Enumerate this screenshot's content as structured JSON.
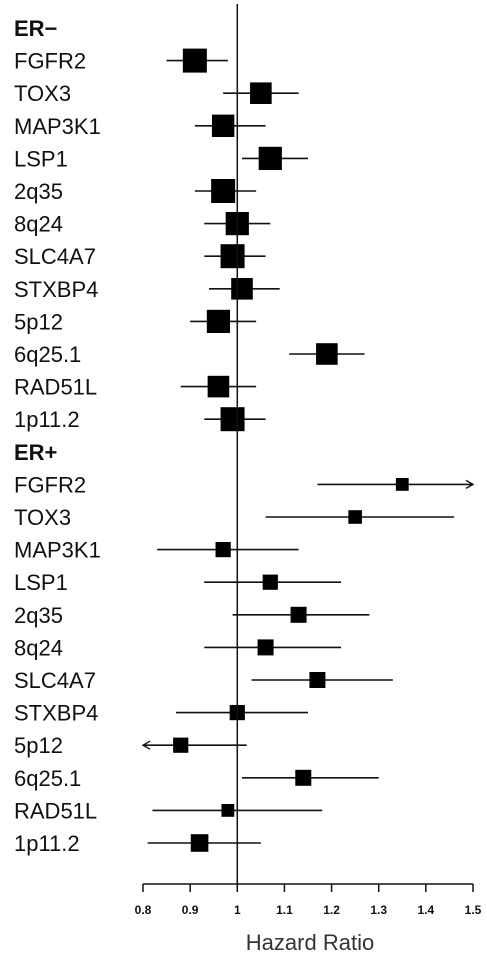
{
  "chart_data": {
    "type": "forest",
    "xlabel": "Hazard Ratio",
    "xlim": [
      0.8,
      1.5
    ],
    "xticks": [
      "0.8",
      "0.9",
      "1",
      "1.1",
      "1.2",
      "1.3",
      "1.4",
      "1.5"
    ],
    "reference_line": 1,
    "groups": [
      {
        "name": "ER−",
        "rows": [
          {
            "label": "FGFR2",
            "hr": 0.91,
            "lo": 0.85,
            "hi": 0.98,
            "weight": 1.0
          },
          {
            "label": "TOX3",
            "hr": 1.05,
            "lo": 0.97,
            "hi": 1.13,
            "weight": 0.85
          },
          {
            "label": "MAP3K1",
            "hr": 0.97,
            "lo": 0.91,
            "hi": 1.06,
            "weight": 0.9
          },
          {
            "label": "LSP1",
            "hr": 1.07,
            "lo": 1.01,
            "hi": 1.15,
            "weight": 0.95
          },
          {
            "label": "2q35",
            "hr": 0.97,
            "lo": 0.91,
            "hi": 1.04,
            "weight": 1.0
          },
          {
            "label": "8q24",
            "hr": 1.0,
            "lo": 0.93,
            "hi": 1.07,
            "weight": 0.95
          },
          {
            "label": "SLC4A7",
            "hr": 0.99,
            "lo": 0.93,
            "hi": 1.06,
            "weight": 1.0
          },
          {
            "label": "STXBP4",
            "hr": 1.01,
            "lo": 0.94,
            "hi": 1.09,
            "weight": 0.85
          },
          {
            "label": "5p12",
            "hr": 0.96,
            "lo": 0.9,
            "hi": 1.04,
            "weight": 0.95
          },
          {
            "label": "6q25.1",
            "hr": 1.19,
            "lo": 1.11,
            "hi": 1.27,
            "weight": 0.85
          },
          {
            "label": "RAD51L",
            "hr": 0.96,
            "lo": 0.88,
            "hi": 1.04,
            "weight": 0.85
          },
          {
            "label": "1p11.2",
            "hr": 0.99,
            "lo": 0.93,
            "hi": 1.06,
            "weight": 1.0
          }
        ]
      },
      {
        "name": "ER+",
        "rows": [
          {
            "label": "FGFR2",
            "hr": 1.35,
            "lo": 1.17,
            "hi": 1.5,
            "weight": 0.3,
            "arrow": "right"
          },
          {
            "label": "TOX3",
            "hr": 1.25,
            "lo": 1.06,
            "hi": 1.46,
            "weight": 0.35
          },
          {
            "label": "MAP3K1",
            "hr": 0.97,
            "lo": 0.83,
            "hi": 1.13,
            "weight": 0.45
          },
          {
            "label": "LSP1",
            "hr": 1.07,
            "lo": 0.93,
            "hi": 1.22,
            "weight": 0.45
          },
          {
            "label": "2q35",
            "hr": 1.13,
            "lo": 0.99,
            "hi": 1.28,
            "weight": 0.5
          },
          {
            "label": "8q24",
            "hr": 1.06,
            "lo": 0.93,
            "hi": 1.22,
            "weight": 0.5
          },
          {
            "label": "SLC4A7",
            "hr": 1.17,
            "lo": 1.03,
            "hi": 1.33,
            "weight": 0.5
          },
          {
            "label": "STXBP4",
            "hr": 1.0,
            "lo": 0.87,
            "hi": 1.15,
            "weight": 0.45
          },
          {
            "label": "5p12",
            "hr": 0.88,
            "lo": 0.8,
            "hi": 1.02,
            "weight": 0.45,
            "arrow": "left"
          },
          {
            "label": "6q25.1",
            "hr": 1.14,
            "lo": 1.01,
            "hi": 1.3,
            "weight": 0.5
          },
          {
            "label": "RAD51L",
            "hr": 0.98,
            "lo": 0.82,
            "hi": 1.18,
            "weight": 0.3
          },
          {
            "label": "1p11.2",
            "hr": 0.92,
            "lo": 0.81,
            "hi": 1.05,
            "weight": 0.6
          }
        ]
      }
    ]
  }
}
